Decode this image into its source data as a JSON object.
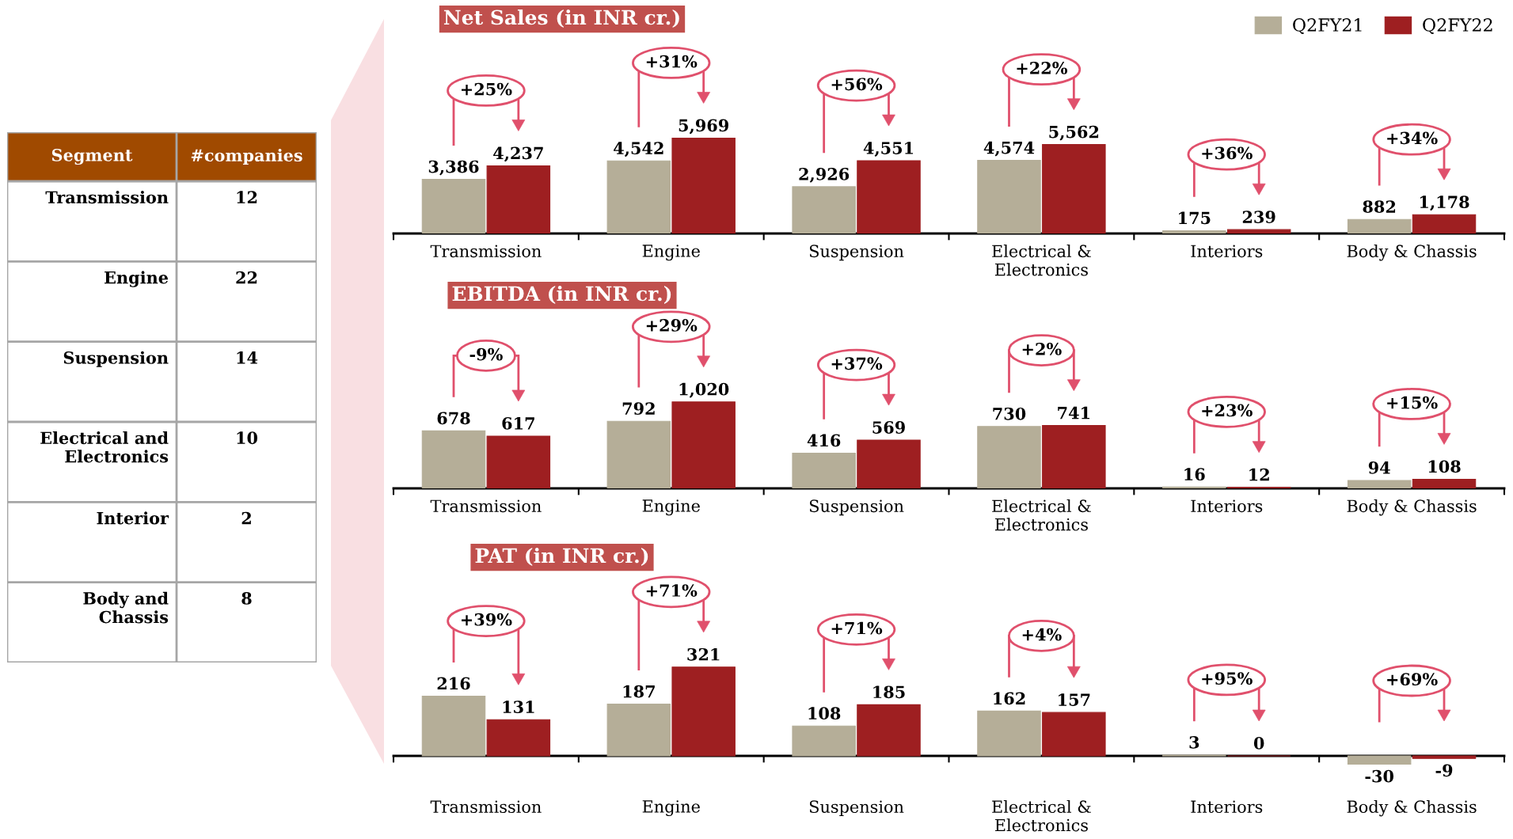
{
  "chart_data": [
    {
      "type": "other",
      "xlabel": "Segment",
      "ylabel": "#companies",
      "categories": [
        "Transmission",
        "Engine",
        "Suspension",
        "Electrical and\nElectronics",
        "Interior",
        "Body and\nChassis"
      ],
      "values": [
        12,
        22,
        14,
        10,
        2,
        8
      ],
      "data_labels": true,
      "color": "#a04a00"
    },
    {
      "type": "bar",
      "title": "Net Sales (in INR cr.)",
      "categories": [
        "Transmission",
        "Engine",
        "Suspension",
        "Electrical &\nElectronics",
        "Interiors",
        "Body & Chassis"
      ],
      "series": [
        {
          "name": "Q2FY21",
          "color": "#b5ae98",
          "values": [
            3386,
            4542,
            2926,
            4574,
            175,
            882
          ],
          "value_labels": [
            "3,386",
            "4,542",
            "2,926",
            "4,574",
            "175",
            "882"
          ]
        },
        {
          "name": "Q2FY22",
          "color": "#9e1f21",
          "values": [
            4237,
            5969,
            4551,
            5562,
            239,
            1178
          ],
          "value_labels": [
            "4,237",
            "5,969",
            "4,551",
            "5,562",
            "239",
            "1,178"
          ]
        }
      ],
      "annotations": [
        "+25%",
        "+31%",
        "+56%",
        "+22%",
        "+36%",
        "+34%"
      ],
      "legend": "top right",
      "tick_labels": "x"
    },
    {
      "type": "bar",
      "title": "EBITDA (in INR cr.)",
      "categories": [
        "Transmission",
        "Engine",
        "Suspension",
        "Electrical &\nElectronics",
        "Interiors",
        "Body & Chassis"
      ],
      "series": [
        {
          "color": "#b5ae98",
          "values": [
            678,
            792,
            416,
            730,
            16,
            94
          ],
          "value_labels": [
            "678",
            "792",
            "416",
            "730",
            "16",
            "94"
          ]
        },
        {
          "color": "#9e1f21",
          "values": [
            617,
            1020,
            569,
            741,
            12,
            108
          ],
          "value_labels": [
            "617",
            "1,020",
            "569",
            "741",
            "12",
            "108"
          ]
        }
      ],
      "annotations": [
        "-9%",
        "+29%",
        "+37%",
        "+2%",
        "+23%",
        "+15%"
      ],
      "tick_labels": "x"
    },
    {
      "type": "bar",
      "title": "PAT (in INR cr.)",
      "categories": [
        "Transmission",
        "Engine",
        "Suspension",
        "Electrical &\nElectronics",
        "Interiors",
        "Body & Chassis"
      ],
      "series": [
        {
          "color": "#b5ae98",
          "values": [
            216,
            187,
            108,
            162,
            3,
            -30
          ],
          "value_labels": [
            "216",
            "187",
            "108",
            "162",
            "3",
            "-30"
          ]
        },
        {
          "color": "#9e1f21",
          "values": [
            131,
            321,
            185,
            157,
            0,
            -9
          ],
          "value_labels": [
            "131",
            "321",
            "185",
            "157",
            "0",
            "-9"
          ]
        }
      ],
      "annotations": [
        "+39%",
        "+71%",
        "+71%",
        "+4%",
        "+95%",
        "+69%"
      ],
      "tick_labels": "x"
    }
  ]
}
